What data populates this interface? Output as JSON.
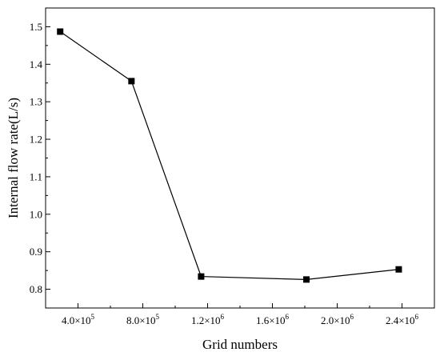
{
  "chart_data": {
    "type": "line",
    "title": "",
    "xlabel": "Grid numbers",
    "ylabel": "Internal flow rate(L/s)",
    "xlim": [
      200000,
      2600000
    ],
    "ylim": [
      0.75,
      1.55
    ],
    "x_ticks": [
      {
        "value": 400000,
        "label": "4.0×10",
        "exp": "5"
      },
      {
        "value": 800000,
        "label": "8.0×10",
        "exp": "5"
      },
      {
        "value": 1200000,
        "label": "1.2×10",
        "exp": "6"
      },
      {
        "value": 1600000,
        "label": "1.6×10",
        "exp": "6"
      },
      {
        "value": 2000000,
        "label": "2.0×10",
        "exp": "6"
      },
      {
        "value": 2400000,
        "label": "2.4×10",
        "exp": "6"
      }
    ],
    "y_ticks": [
      {
        "value": 0.8,
        "label": "0.8"
      },
      {
        "value": 0.9,
        "label": "0.9"
      },
      {
        "value": 1.0,
        "label": "1.0"
      },
      {
        "value": 1.1,
        "label": "1.1"
      },
      {
        "value": 1.2,
        "label": "1.2"
      },
      {
        "value": 1.3,
        "label": "1.3"
      },
      {
        "value": 1.4,
        "label": "1.4"
      },
      {
        "value": 1.5,
        "label": "1.5"
      }
    ],
    "series": [
      {
        "x": [
          290000,
          730000,
          1160000,
          1810000,
          2380000
        ],
        "y": [
          1.487,
          1.355,
          0.834,
          0.826,
          0.853
        ],
        "marker": "square",
        "color": "#000000"
      }
    ],
    "grid": false,
    "legend": "none"
  }
}
